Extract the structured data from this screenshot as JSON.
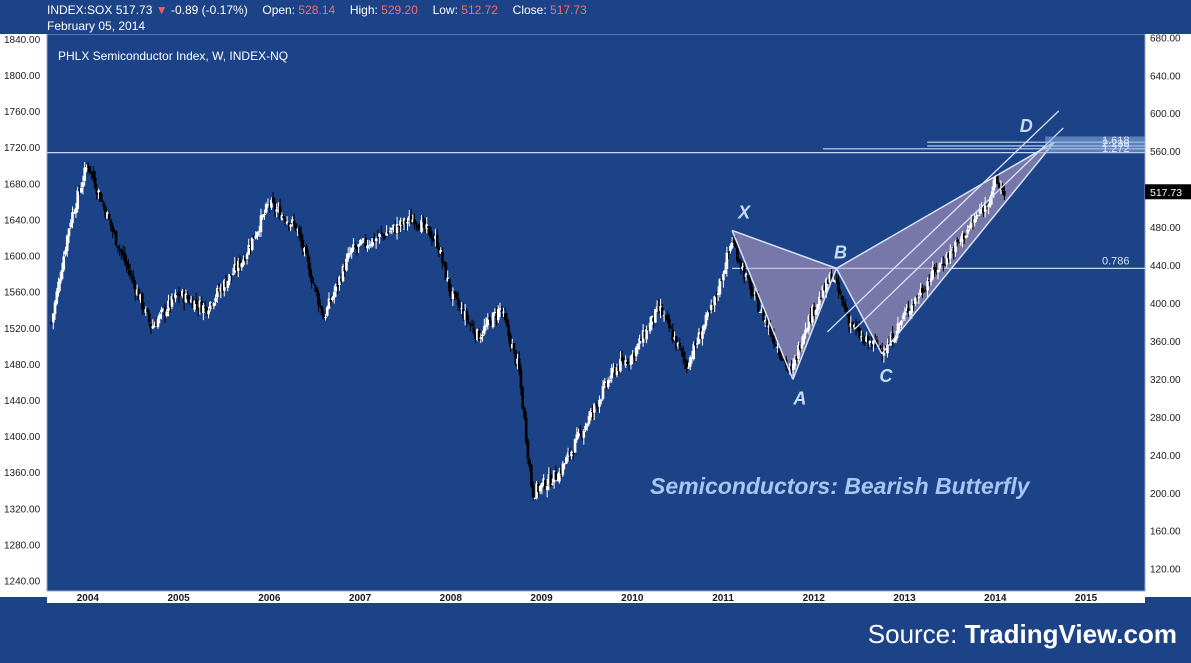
{
  "header": {
    "symbol": "INDEX:SOX",
    "last": "517.73",
    "arrow": "▼",
    "change": "-0.89 (-0.17%)",
    "open_label": "Open:",
    "open_value": "528.14",
    "high_label": "High:",
    "high_value": "529.20",
    "low_label": "Low:",
    "low_value": "512.72",
    "close_label": "Close:",
    "close_value": "517.73",
    "date": "February 05, 2014"
  },
  "legend": {
    "text": "PHLX Semiconductor Index, W, INDEX-NQ"
  },
  "source": {
    "prefix": "Source: ",
    "brand": "TradingView.com"
  },
  "colors": {
    "background": "#1c4387",
    "axis_panel": "#ffffff",
    "pattern_fill": "#c2a3c6",
    "pattern_line": "#d8e4f6",
    "up_candle": "#ffffff",
    "down_candle": "#000000",
    "price_tag": "#000000"
  },
  "chart_data": {
    "type": "candlestick",
    "title": "Semiconductors: Bearish Butterfly",
    "left_axis": {
      "ticks": [
        "1840.00",
        "1800.00",
        "1760.00",
        "1720.00",
        "1680.00",
        "1640.00",
        "1600.00",
        "1560.00",
        "1520.00",
        "1480.00",
        "1440.00",
        "1400.00",
        "1360.00",
        "1320.00",
        "1280.00",
        "1240.00"
      ],
      "range": [
        1229,
        1846
      ]
    },
    "right_axis": {
      "ticks": [
        "680.00",
        "640.00",
        "600.00",
        "560.00",
        "520.00",
        "480.00",
        "440.00",
        "400.00",
        "360.00",
        "320.00",
        "280.00",
        "240.00",
        "200.00",
        "160.00",
        "120.00"
      ],
      "range": [
        97,
        684
      ]
    },
    "x_axis": {
      "ticks": [
        "2004",
        "2005",
        "2006",
        "2007",
        "2008",
        "2009",
        "2010",
        "2011",
        "2012",
        "2013",
        "2014",
        "2015"
      ],
      "range": [
        2003.55,
        2015.65
      ]
    },
    "current_price_label": "517.73",
    "price_anchors": [
      [
        2003.6,
        380
      ],
      [
        2003.8,
        485
      ],
      [
        2004.0,
        548
      ],
      [
        2004.3,
        470
      ],
      [
        2004.7,
        375
      ],
      [
        2005.0,
        410
      ],
      [
        2005.3,
        395
      ],
      [
        2005.7,
        445
      ],
      [
        2006.0,
        505
      ],
      [
        2006.3,
        480
      ],
      [
        2006.6,
        385
      ],
      [
        2006.9,
        455
      ],
      [
        2007.3,
        475
      ],
      [
        2007.6,
        490
      ],
      [
        2007.85,
        465
      ],
      [
        2008.0,
        410
      ],
      [
        2008.3,
        365
      ],
      [
        2008.55,
        395
      ],
      [
        2008.75,
        330
      ],
      [
        2008.9,
        200
      ],
      [
        2009.2,
        222
      ],
      [
        2009.5,
        275
      ],
      [
        2009.8,
        330
      ],
      [
        2010.0,
        345
      ],
      [
        2010.3,
        395
      ],
      [
        2010.6,
        335
      ],
      [
        2010.9,
        400
      ],
      [
        2011.1,
        467
      ],
      [
        2011.3,
        415
      ],
      [
        2011.55,
        365
      ],
      [
        2011.75,
        325
      ],
      [
        2011.9,
        375
      ],
      [
        2012.2,
        430
      ],
      [
        2012.4,
        380
      ],
      [
        2012.55,
        360
      ],
      [
        2012.8,
        352
      ],
      [
        2013.0,
        388
      ],
      [
        2013.3,
        430
      ],
      [
        2013.6,
        465
      ],
      [
        2013.9,
        505
      ],
      [
        2014.0,
        528
      ],
      [
        2014.1,
        518
      ]
    ],
    "pattern": {
      "name": "Bearish Butterfly",
      "points": [
        {
          "label": "X",
          "x": 2011.1,
          "y": 477
        },
        {
          "label": "A",
          "x": 2011.77,
          "y": 320
        },
        {
          "label": "B",
          "x": 2012.25,
          "y": 437
        },
        {
          "label": "C",
          "x": 2012.75,
          "y": 347
        },
        {
          "label": "D",
          "x": 2014.65,
          "y": 570
        }
      ],
      "ratios": [
        {
          "label": "0.786",
          "level": 437
        },
        {
          "label": "1.618",
          "level": 570
        },
        {
          "label": "1.272",
          "level": 563
        },
        {
          "label": "2.236",
          "level": 566
        }
      ]
    },
    "horizontal_lines": [
      {
        "level": 559,
        "x_start": 2003.55
      },
      {
        "level": 437,
        "x_start": 2011.1
      }
    ]
  }
}
